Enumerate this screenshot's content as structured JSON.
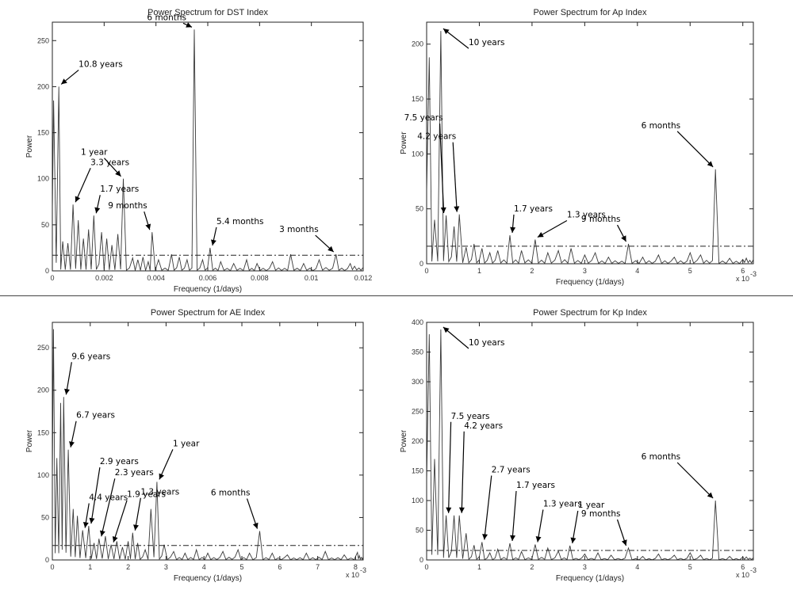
{
  "chart_data": [
    {
      "type": "line",
      "title": "Power Spectrum for DST Index",
      "xlabel": "Frequency (1/days)",
      "ylabel": "Power",
      "xlim": [
        0,
        0.012
      ],
      "ylim": [
        0,
        270
      ],
      "xticks": [
        0,
        0.002,
        0.004,
        0.006,
        0.008,
        0.01,
        0.012
      ],
      "xtick_labels": [
        "0",
        "0.002",
        "0.004",
        "0.006",
        "0.008",
        "0.01",
        "0.012"
      ],
      "yticks": [
        0,
        50,
        100,
        150,
        200,
        250
      ],
      "threshold": 17,
      "x_scale_label": "",
      "peaks": [
        {
          "x": 5e-05,
          "y": 185
        },
        {
          "x": 0.00025,
          "y": 200
        },
        {
          "x": 0.0004,
          "y": 32
        },
        {
          "x": 0.0006,
          "y": 30
        },
        {
          "x": 0.0008,
          "y": 72
        },
        {
          "x": 0.001,
          "y": 55
        },
        {
          "x": 0.0012,
          "y": 35
        },
        {
          "x": 0.0014,
          "y": 45
        },
        {
          "x": 0.0016,
          "y": 60
        },
        {
          "x": 0.0019,
          "y": 42
        },
        {
          "x": 0.0021,
          "y": 35
        },
        {
          "x": 0.0023,
          "y": 28
        },
        {
          "x": 0.00253,
          "y": 40
        },
        {
          "x": 0.00274,
          "y": 100
        },
        {
          "x": 0.0031,
          "y": 14
        },
        {
          "x": 0.0033,
          "y": 12
        },
        {
          "x": 0.0035,
          "y": 15
        },
        {
          "x": 0.0037,
          "y": 10
        },
        {
          "x": 0.00385,
          "y": 42
        },
        {
          "x": 0.0041,
          "y": 12
        },
        {
          "x": 0.0046,
          "y": 18
        },
        {
          "x": 0.0049,
          "y": 15
        },
        {
          "x": 0.0052,
          "y": 12
        },
        {
          "x": 0.00548,
          "y": 262
        },
        {
          "x": 0.0058,
          "y": 12
        },
        {
          "x": 0.00609,
          "y": 25
        },
        {
          "x": 0.0065,
          "y": 10
        },
        {
          "x": 0.007,
          "y": 8
        },
        {
          "x": 0.0075,
          "y": 12
        },
        {
          "x": 0.0079,
          "y": 8
        },
        {
          "x": 0.0085,
          "y": 10
        },
        {
          "x": 0.0092,
          "y": 18
        },
        {
          "x": 0.0097,
          "y": 8
        },
        {
          "x": 0.0103,
          "y": 12
        },
        {
          "x": 0.01095,
          "y": 18
        },
        {
          "x": 0.0115,
          "y": 8
        }
      ],
      "annotations": [
        {
          "text": "10.8 years",
          "x": 0.00025,
          "y": 200
        },
        {
          "text": "3.3 years",
          "x": 0.0008,
          "y": 72
        },
        {
          "text": "1.7 years",
          "x": 0.0016,
          "y": 60
        },
        {
          "text": "1 year",
          "x": 0.00274,
          "y": 100
        },
        {
          "text": "9 months",
          "x": 0.00385,
          "y": 42
        },
        {
          "text": "6 months",
          "x": 0.00548,
          "y": 262
        },
        {
          "text": "5.4 months",
          "x": 0.00609,
          "y": 25
        },
        {
          "text": "3 months",
          "x": 0.01095,
          "y": 18
        }
      ]
    },
    {
      "type": "line",
      "title": "Power Spectrum for Ap Index",
      "xlabel": "Frequency (1/days)",
      "ylabel": "Power",
      "xlim": [
        0,
        6.2
      ],
      "ylim": [
        0,
        220
      ],
      "xticks": [
        0,
        1,
        2,
        3,
        4,
        5,
        6
      ],
      "xtick_labels": [
        "0",
        "1",
        "2",
        "3",
        "4",
        "5",
        "6"
      ],
      "yticks": [
        0,
        50,
        100,
        150,
        200
      ],
      "threshold": 16,
      "x_scale_label": "x 10",
      "x_scale_exp": "-3",
      "peaks": [
        {
          "x": 0.05,
          "y": 188
        },
        {
          "x": 0.15,
          "y": 40
        },
        {
          "x": 0.27,
          "y": 212
        },
        {
          "x": 0.37,
          "y": 44
        },
        {
          "x": 0.52,
          "y": 34
        },
        {
          "x": 0.62,
          "y": 45
        },
        {
          "x": 0.75,
          "y": 15
        },
        {
          "x": 0.9,
          "y": 18
        },
        {
          "x": 1.05,
          "y": 14
        },
        {
          "x": 1.2,
          "y": 10
        },
        {
          "x": 1.35,
          "y": 12
        },
        {
          "x": 1.58,
          "y": 26
        },
        {
          "x": 1.8,
          "y": 12
        },
        {
          "x": 2.06,
          "y": 22
        },
        {
          "x": 2.3,
          "y": 10
        },
        {
          "x": 2.5,
          "y": 12
        },
        {
          "x": 2.74,
          "y": 14
        },
        {
          "x": 3.0,
          "y": 8
        },
        {
          "x": 3.2,
          "y": 10
        },
        {
          "x": 3.45,
          "y": 6
        },
        {
          "x": 3.83,
          "y": 18
        },
        {
          "x": 4.1,
          "y": 6
        },
        {
          "x": 4.4,
          "y": 8
        },
        {
          "x": 4.7,
          "y": 6
        },
        {
          "x": 5.0,
          "y": 10
        },
        {
          "x": 5.2,
          "y": 8
        },
        {
          "x": 5.48,
          "y": 86
        },
        {
          "x": 5.75,
          "y": 5
        },
        {
          "x": 6.0,
          "y": 4
        }
      ],
      "annotations": [
        {
          "text": "10 years",
          "x": 0.27,
          "y": 212
        },
        {
          "text": "7.5 years",
          "x": 0.37,
          "y": 44
        },
        {
          "text": "4.2 years",
          "x": 0.62,
          "y": 45
        },
        {
          "text": "1.7 years",
          "x": 1.58,
          "y": 26
        },
        {
          "text": "1.3 years",
          "x": 2.06,
          "y": 22
        },
        {
          "text": "9 months",
          "x": 3.83,
          "y": 18
        },
        {
          "text": "6 months",
          "x": 5.48,
          "y": 86
        }
      ]
    },
    {
      "type": "line",
      "title": "Power Spectrum for AE Index",
      "xlabel": "Frequency (1/days)",
      "ylabel": "Power",
      "xlim": [
        0,
        8.2
      ],
      "ylim": [
        0,
        280
      ],
      "xticks": [
        0,
        1,
        2,
        3,
        4,
        5,
        6,
        7,
        8
      ],
      "xtick_labels": [
        "0",
        "1",
        "2",
        "3",
        "4",
        "5",
        "6",
        "7",
        "8"
      ],
      "yticks": [
        0,
        50,
        100,
        150,
        200,
        250
      ],
      "threshold": 17,
      "x_scale_label": "x 10",
      "x_scale_exp": "-3",
      "peaks": [
        {
          "x": 0.03,
          "y": 272
        },
        {
          "x": 0.12,
          "y": 120
        },
        {
          "x": 0.22,
          "y": 185
        },
        {
          "x": 0.3,
          "y": 192
        },
        {
          "x": 0.42,
          "y": 130
        },
        {
          "x": 0.55,
          "y": 60
        },
        {
          "x": 0.66,
          "y": 52
        },
        {
          "x": 0.8,
          "y": 35
        },
        {
          "x": 0.96,
          "y": 40
        },
        {
          "x": 1.1,
          "y": 20
        },
        {
          "x": 1.23,
          "y": 25
        },
        {
          "x": 1.4,
          "y": 28
        },
        {
          "x": 1.55,
          "y": 18
        },
        {
          "x": 1.7,
          "y": 22
        },
        {
          "x": 1.85,
          "y": 15
        },
        {
          "x": 2.0,
          "y": 22
        },
        {
          "x": 2.12,
          "y": 32
        },
        {
          "x": 2.25,
          "y": 20
        },
        {
          "x": 2.45,
          "y": 12
        },
        {
          "x": 2.6,
          "y": 60
        },
        {
          "x": 2.76,
          "y": 92
        },
        {
          "x": 2.95,
          "y": 18
        },
        {
          "x": 3.2,
          "y": 10
        },
        {
          "x": 3.5,
          "y": 8
        },
        {
          "x": 3.8,
          "y": 12
        },
        {
          "x": 4.1,
          "y": 8
        },
        {
          "x": 4.5,
          "y": 10
        },
        {
          "x": 4.9,
          "y": 12
        },
        {
          "x": 5.2,
          "y": 8
        },
        {
          "x": 5.47,
          "y": 34
        },
        {
          "x": 5.8,
          "y": 8
        },
        {
          "x": 6.2,
          "y": 6
        },
        {
          "x": 6.7,
          "y": 8
        },
        {
          "x": 7.2,
          "y": 10
        },
        {
          "x": 7.7,
          "y": 6
        },
        {
          "x": 8.05,
          "y": 9
        }
      ],
      "annotations": [
        {
          "text": "9.6 years",
          "x": 0.3,
          "y": 192
        },
        {
          "text": "6.7 years",
          "x": 0.42,
          "y": 130
        },
        {
          "text": "4.4 years",
          "x": 0.8,
          "y": 35
        },
        {
          "text": "2.9 years",
          "x": 0.96,
          "y": 40
        },
        {
          "text": "2.3 years",
          "x": 1.23,
          "y": 25
        },
        {
          "text": "1.9 years",
          "x": 1.55,
          "y": 18
        },
        {
          "text": "1.3 years",
          "x": 2.12,
          "y": 32
        },
        {
          "text": "1 year",
          "x": 2.76,
          "y": 92
        },
        {
          "text": "6 months",
          "x": 5.47,
          "y": 34
        }
      ]
    },
    {
      "type": "line",
      "title": "Power Spectrum for Kp Index",
      "xlabel": "Frequency (1/days)",
      "ylabel": "Power",
      "xlim": [
        0,
        6.2
      ],
      "ylim": [
        0,
        400
      ],
      "xticks": [
        0,
        1,
        2,
        3,
        4,
        5,
        6
      ],
      "xtick_labels": [
        "0",
        "1",
        "2",
        "3",
        "4",
        "5",
        "6"
      ],
      "yticks": [
        0,
        50,
        100,
        150,
        200,
        250,
        300,
        350,
        400
      ],
      "threshold": 16,
      "x_scale_label": "x 10",
      "x_scale_exp": "-3",
      "peaks": [
        {
          "x": 0.05,
          "y": 380
        },
        {
          "x": 0.15,
          "y": 170
        },
        {
          "x": 0.27,
          "y": 388
        },
        {
          "x": 0.37,
          "y": 75
        },
        {
          "x": 0.52,
          "y": 75
        },
        {
          "x": 0.62,
          "y": 75
        },
        {
          "x": 0.75,
          "y": 45
        },
        {
          "x": 0.9,
          "y": 25
        },
        {
          "x": 1.05,
          "y": 30
        },
        {
          "x": 1.2,
          "y": 12
        },
        {
          "x": 1.35,
          "y": 18
        },
        {
          "x": 1.58,
          "y": 28
        },
        {
          "x": 1.8,
          "y": 14
        },
        {
          "x": 2.06,
          "y": 26
        },
        {
          "x": 2.3,
          "y": 20
        },
        {
          "x": 2.5,
          "y": 15
        },
        {
          "x": 2.72,
          "y": 24
        },
        {
          "x": 3.0,
          "y": 10
        },
        {
          "x": 3.25,
          "y": 12
        },
        {
          "x": 3.5,
          "y": 8
        },
        {
          "x": 3.83,
          "y": 20
        },
        {
          "x": 4.1,
          "y": 6
        },
        {
          "x": 4.4,
          "y": 10
        },
        {
          "x": 4.7,
          "y": 8
        },
        {
          "x": 5.0,
          "y": 12
        },
        {
          "x": 5.2,
          "y": 8
        },
        {
          "x": 5.48,
          "y": 100
        },
        {
          "x": 5.75,
          "y": 6
        },
        {
          "x": 6.0,
          "y": 5
        }
      ],
      "annotations": [
        {
          "text": "10 years",
          "x": 0.27,
          "y": 388
        },
        {
          "text": "7.5 years",
          "x": 0.37,
          "y": 75
        },
        {
          "text": "4.2 years",
          "x": 0.62,
          "y": 75
        },
        {
          "text": "2.7 years",
          "x": 1.05,
          "y": 30
        },
        {
          "text": "1.7 years",
          "x": 1.58,
          "y": 28
        },
        {
          "text": "1.3 years",
          "x": 2.06,
          "y": 26
        },
        {
          "text": "1 year",
          "x": 2.72,
          "y": 24
        },
        {
          "text": "9 months",
          "x": 3.83,
          "y": 20
        },
        {
          "text": "6 months",
          "x": 5.48,
          "y": 100
        }
      ]
    }
  ]
}
